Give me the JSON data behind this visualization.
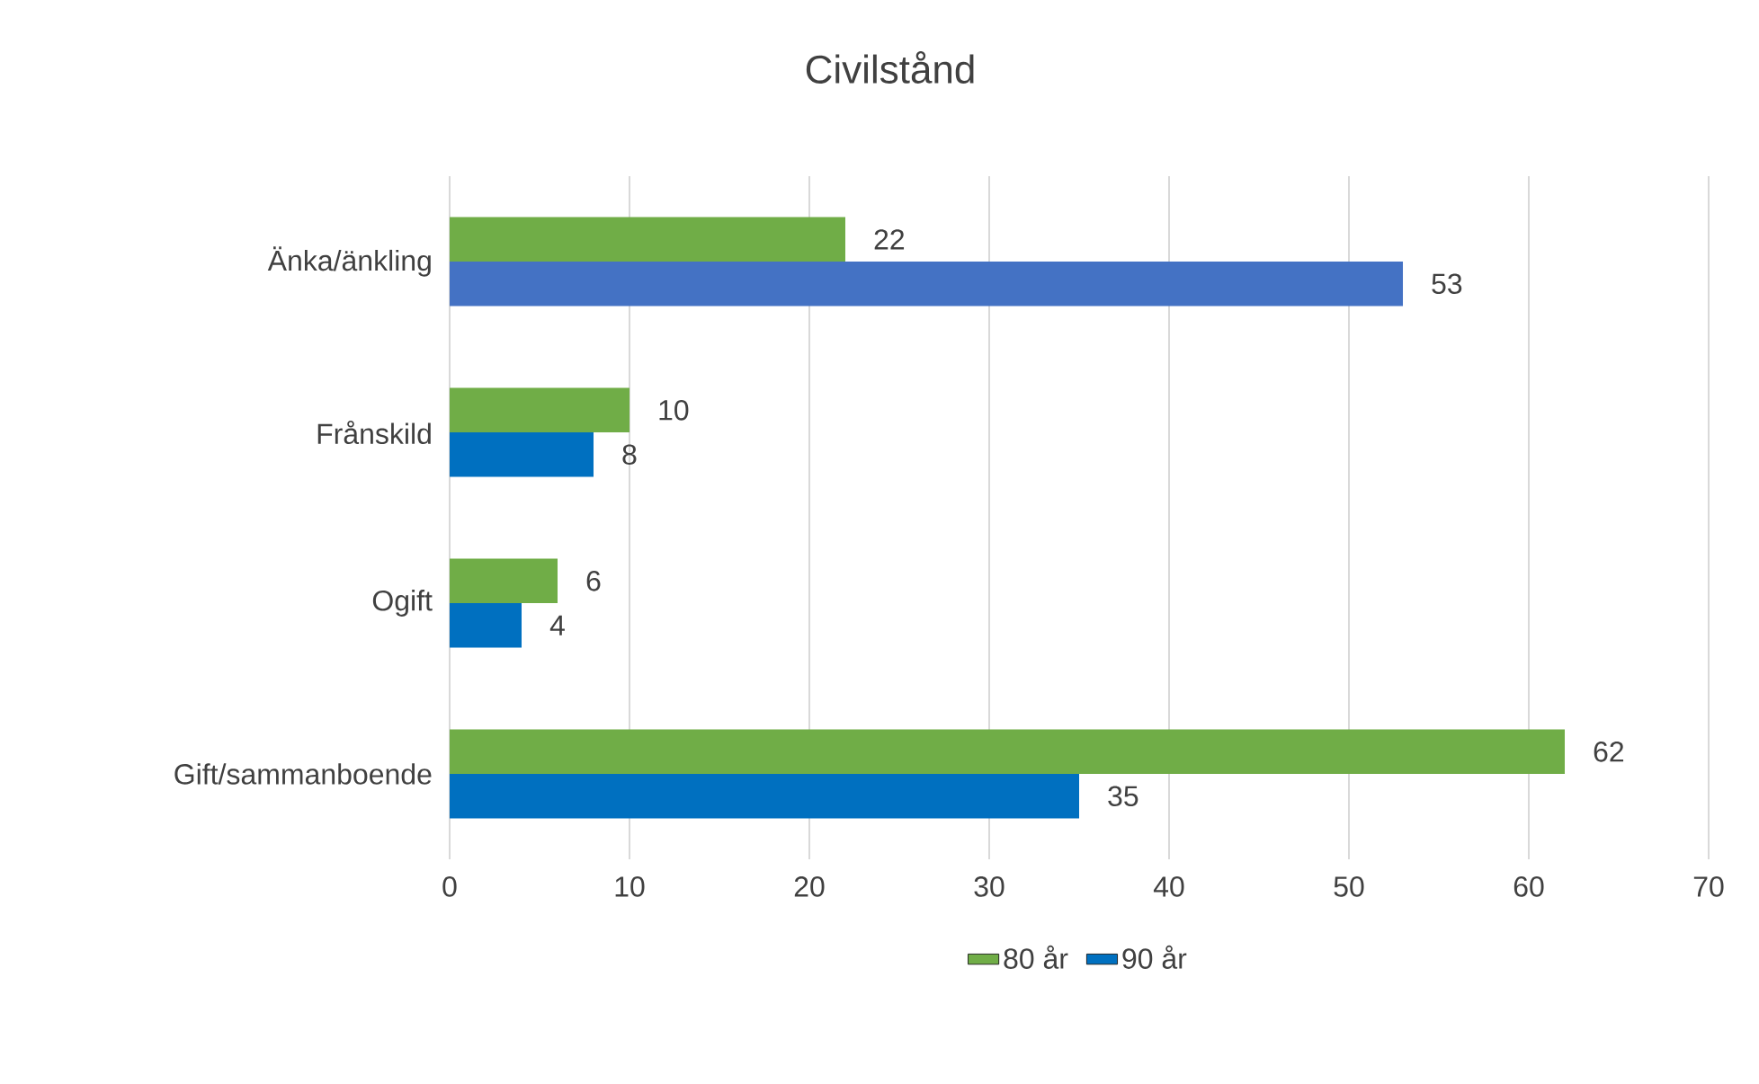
{
  "chart_data": {
    "type": "bar",
    "orientation": "horizontal",
    "title": "Civilstånd",
    "categories": [
      "Änka/änkling",
      "Frånskild",
      "Ogift",
      "Gift/sammanboende"
    ],
    "series": [
      {
        "name": "80 år",
        "color": "#70ad47",
        "values": [
          22,
          10,
          6,
          62
        ]
      },
      {
        "name": "90 år",
        "color": "#0070c0",
        "colors": [
          "#4472c4",
          "#0070c0",
          "#0070c0",
          "#0070c0"
        ],
        "values": [
          53,
          8,
          4,
          35
        ]
      }
    ],
    "xlim": [
      0,
      70
    ],
    "xticks": [
      0,
      10,
      20,
      30,
      40,
      50,
      60,
      70
    ],
    "grid": "x",
    "legend": "bottom",
    "data_labels": true
  }
}
